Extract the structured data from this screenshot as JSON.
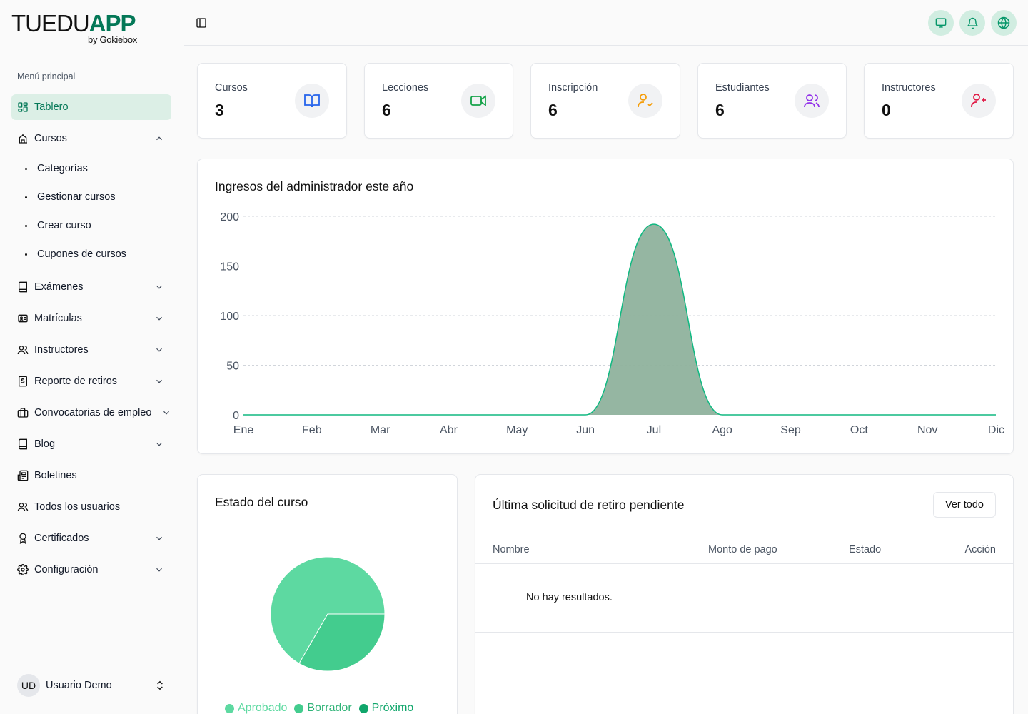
{
  "brand": {
    "name_light": "TUEDU",
    "name_bold": "APP",
    "tagline": "by Gokiebox"
  },
  "sidebar": {
    "section_label": "Menú principal",
    "items": [
      {
        "label": "Tablero",
        "icon": "dashboard-icon",
        "active": true
      },
      {
        "label": "Cursos",
        "icon": "school-icon",
        "expanded": true,
        "children": [
          "Categorías",
          "Gestionar cursos",
          "Crear curso",
          "Cupones de cursos"
        ]
      },
      {
        "label": "Exámenes",
        "icon": "book-icon"
      },
      {
        "label": "Matrículas",
        "icon": "id-card-icon"
      },
      {
        "label": "Instructores",
        "icon": "users-icon"
      },
      {
        "label": "Reporte de retiros",
        "icon": "dollar-file-icon"
      },
      {
        "label": "Convocatorias de empleo",
        "icon": "briefcase-icon"
      },
      {
        "label": "Blog",
        "icon": "book-icon"
      },
      {
        "label": "Boletines",
        "icon": "newspaper-icon"
      },
      {
        "label": "Todos los usuarios",
        "icon": "users-icon"
      },
      {
        "label": "Certificados",
        "icon": "award-icon"
      },
      {
        "label": "Configuración",
        "icon": "gear-icon"
      }
    ],
    "user": {
      "initials": "UD",
      "name": "Usuario Demo"
    }
  },
  "stats": [
    {
      "label": "Cursos",
      "value": "3",
      "icon": "book-open-icon",
      "color": "#2563eb"
    },
    {
      "label": "Lecciones",
      "value": "6",
      "icon": "video-icon",
      "color": "#16a34a"
    },
    {
      "label": "Inscripción",
      "value": "6",
      "icon": "user-check-icon",
      "color": "#f59e0b"
    },
    {
      "label": "Estudiantes",
      "value": "6",
      "icon": "users-icon",
      "color": "#9333ea"
    },
    {
      "label": "Instructores",
      "value": "0",
      "icon": "user-plus-icon",
      "color": "#e11d48"
    }
  ],
  "revenue": {
    "title": "Ingresos del administrador este año",
    "chart_data": {
      "type": "area",
      "title": "Ingresos del administrador este año",
      "categories": [
        "Ene",
        "Feb",
        "Mar",
        "Abr",
        "May",
        "Jun",
        "Jul",
        "Ago",
        "Sep",
        "Oct",
        "Nov",
        "Dic"
      ],
      "values": [
        0,
        0,
        0,
        0,
        0,
        0,
        192,
        0,
        0,
        0,
        0,
        0
      ],
      "y_ticks": [
        0,
        50,
        100,
        150,
        200
      ],
      "ylim": [
        0,
        200
      ],
      "grid": true,
      "color": "#10b981"
    }
  },
  "course_status": {
    "title": "Estado del curso",
    "chart_data": {
      "type": "pie",
      "categories": [
        "Aprobado",
        "Borrador",
        "Próximo"
      ],
      "values": [
        2,
        1,
        0
      ],
      "colors": [
        "#5dd9a1",
        "#43cc8e",
        "#10a66b"
      ],
      "legend": "bottom"
    }
  },
  "withdrawals": {
    "title": "Última solicitud de retiro pendiente",
    "view_all": "Ver todo",
    "columns": [
      "Nombre",
      "Monto de pago",
      "Estado",
      "Acción"
    ],
    "empty": "No hay resultados."
  }
}
